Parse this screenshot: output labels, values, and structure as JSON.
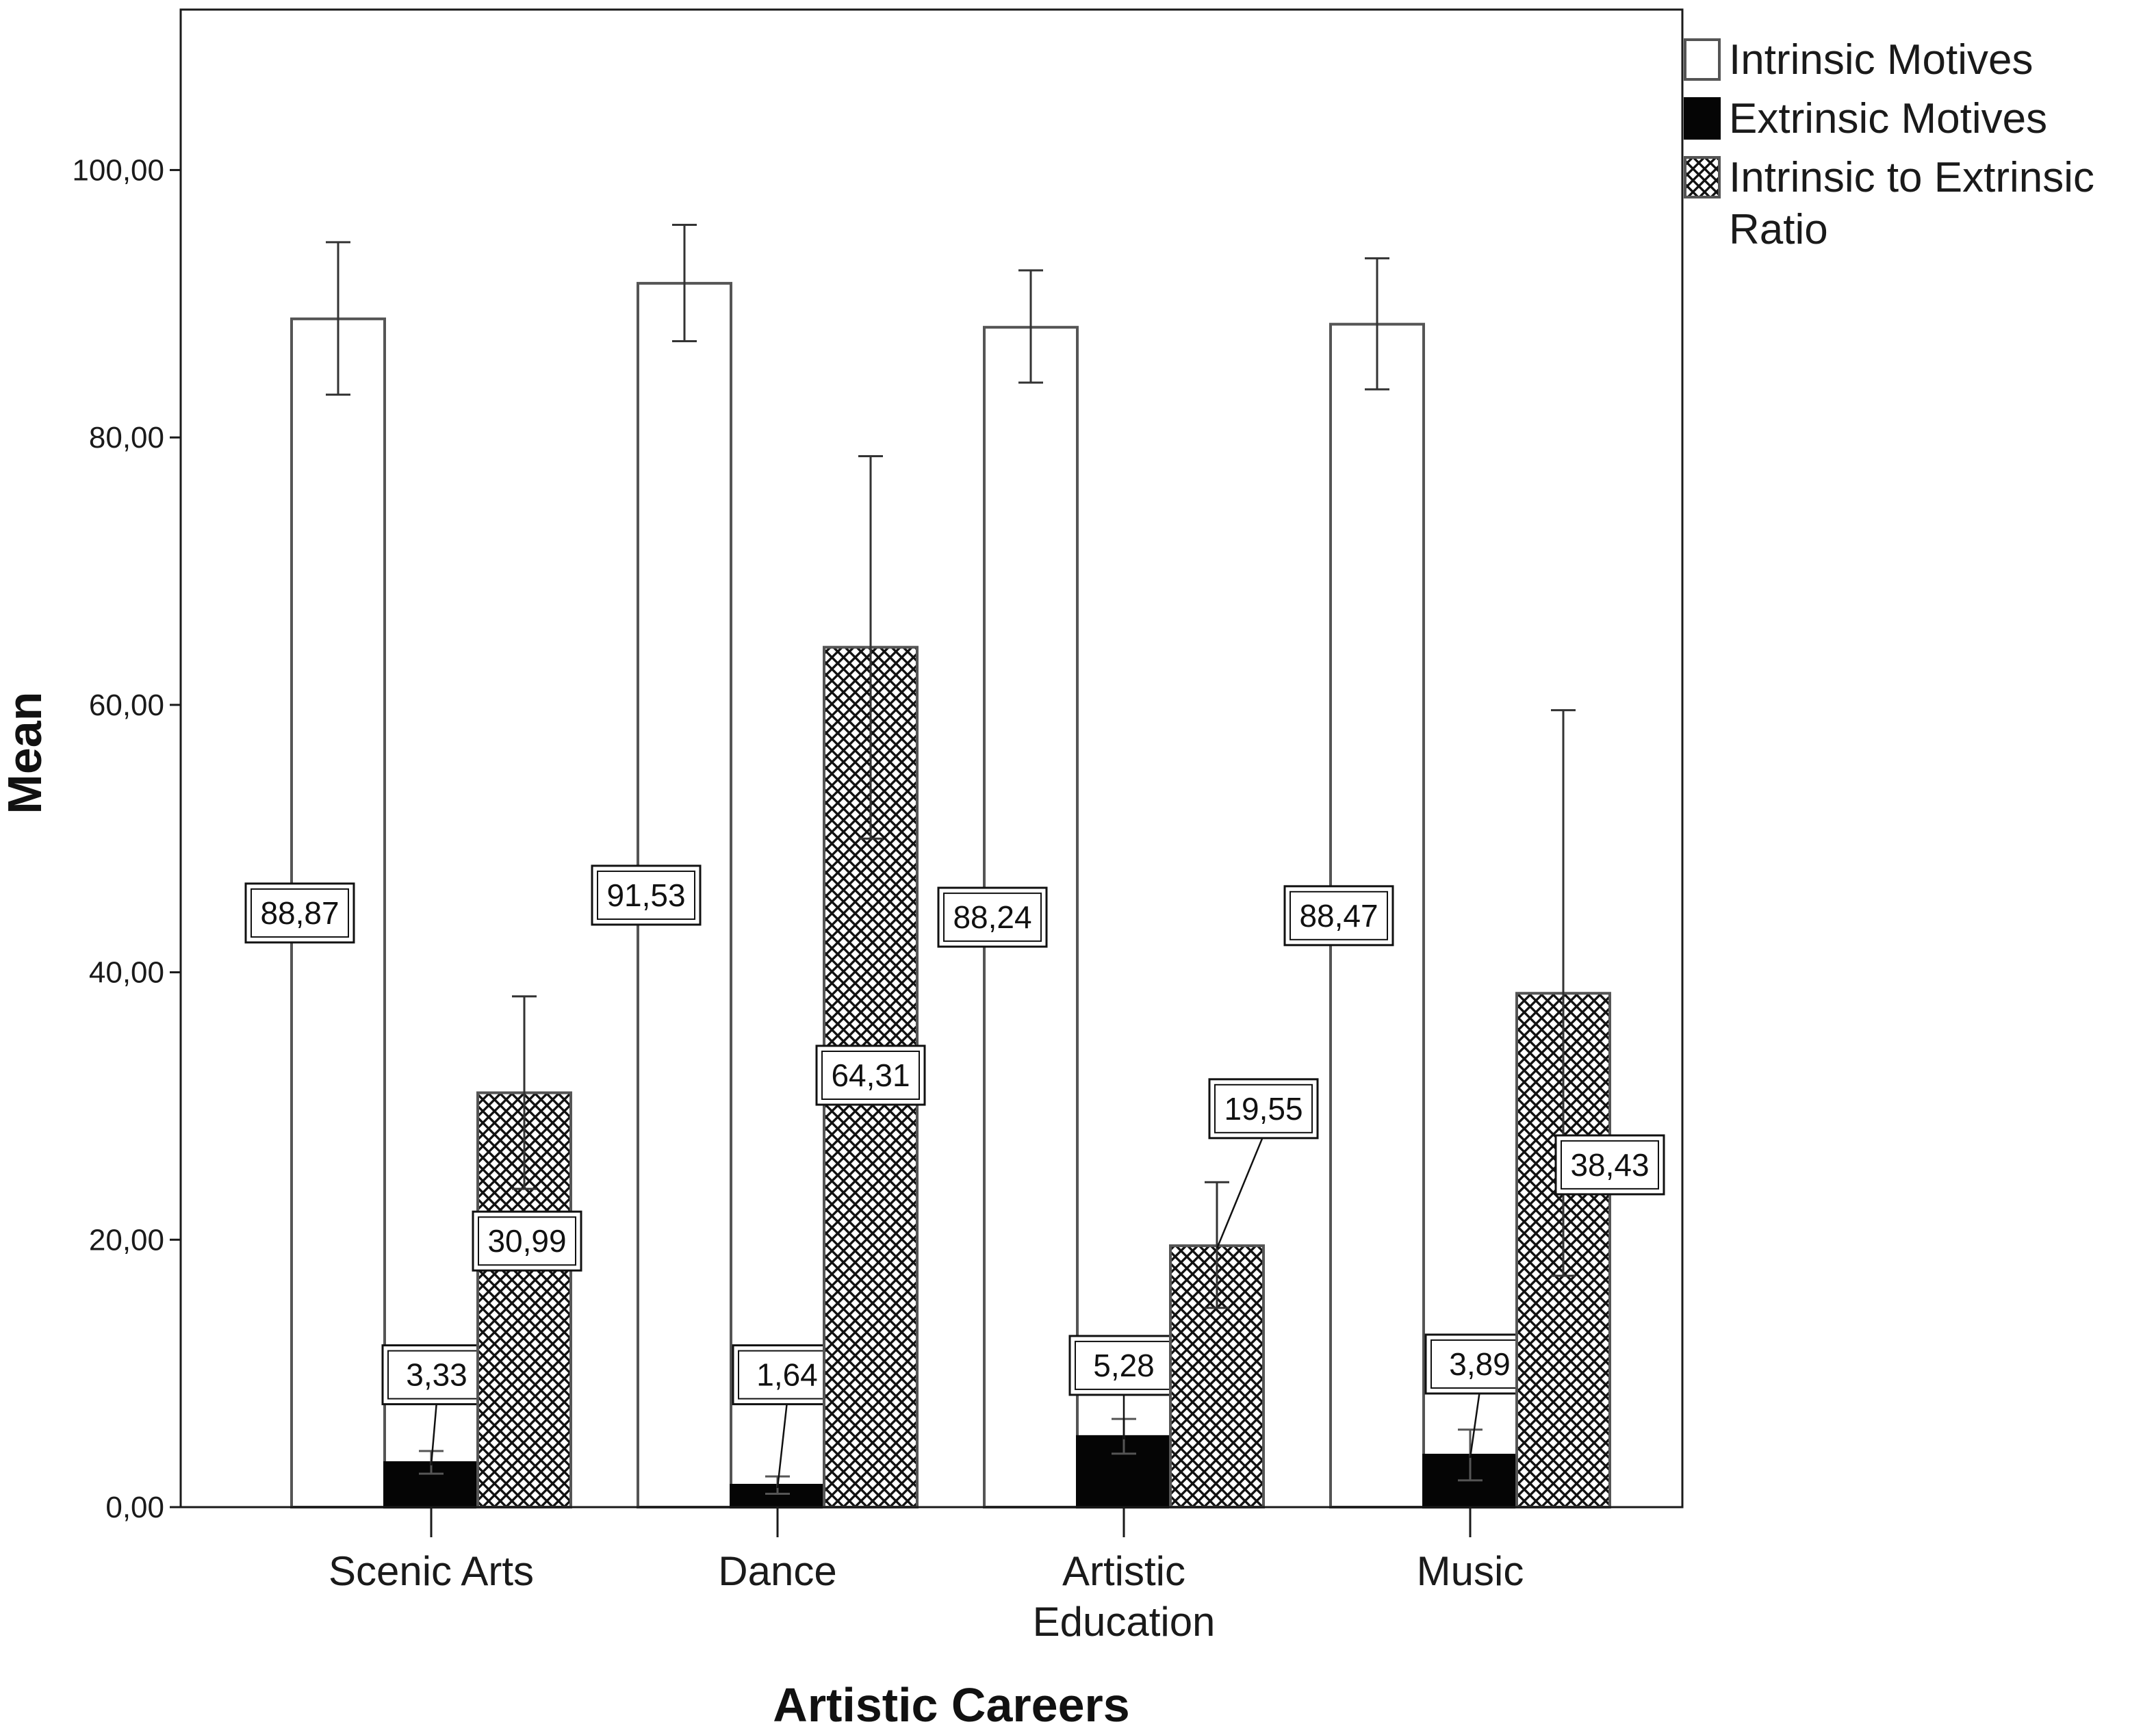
{
  "chart_data": {
    "type": "bar",
    "title": "",
    "xlabel": "Artistic Careers",
    "ylabel": "Mean",
    "ylim": [
      0,
      112
    ],
    "yticks": [
      0,
      20,
      40,
      60,
      80,
      100
    ],
    "ytick_labels": [
      "0,00",
      "20,00",
      "40,00",
      "60,00",
      "80,00",
      "100,00"
    ],
    "categories": [
      [
        "Scenic Arts"
      ],
      [
        "Dance"
      ],
      [
        "Artistic",
        "Education"
      ],
      [
        "Music"
      ]
    ],
    "series": [
      {
        "name": "Intrinsic Motives",
        "fill": "white",
        "values": [
          88.87,
          91.53,
          88.24,
          88.47
        ],
        "labels": [
          "88,87",
          "91,53",
          "88,24",
          "88,47"
        ],
        "error_low": [
          83.2,
          87.2,
          84.1,
          83.6
        ],
        "error_high": [
          94.6,
          95.9,
          92.5,
          93.4
        ]
      },
      {
        "name": "Extrinsic Motives",
        "fill": "black",
        "values": [
          3.33,
          1.64,
          5.28,
          3.89
        ],
        "labels": [
          "3,33",
          "1,64",
          "5,28",
          "3,89"
        ],
        "error_low": [
          2.5,
          1.0,
          4.0,
          2.0
        ],
        "error_high": [
          4.2,
          2.3,
          6.6,
          5.8
        ]
      },
      {
        "name": "Intrinsic to Extrinsic Ratio",
        "fill": "crosshatch",
        "values": [
          30.99,
          64.31,
          19.55,
          38.43
        ],
        "labels": [
          "30,99",
          "64,31",
          "19,55",
          "38,43"
        ],
        "error_low": [
          23.8,
          50.0,
          14.9,
          17.3
        ],
        "error_high": [
          38.2,
          78.6,
          24.3,
          59.6
        ]
      }
    ],
    "legend": {
      "position": "top-right outside plot",
      "entries": [
        [
          "Intrinsic Motives"
        ],
        [
          "Extrinsic Motives"
        ],
        [
          "Intrinsic to Extrinsic",
          "Ratio"
        ]
      ]
    },
    "grid": false,
    "colors": {
      "frame": "#1a1a1a",
      "bar_outline": "#555555",
      "bar_black": "#050505"
    }
  }
}
